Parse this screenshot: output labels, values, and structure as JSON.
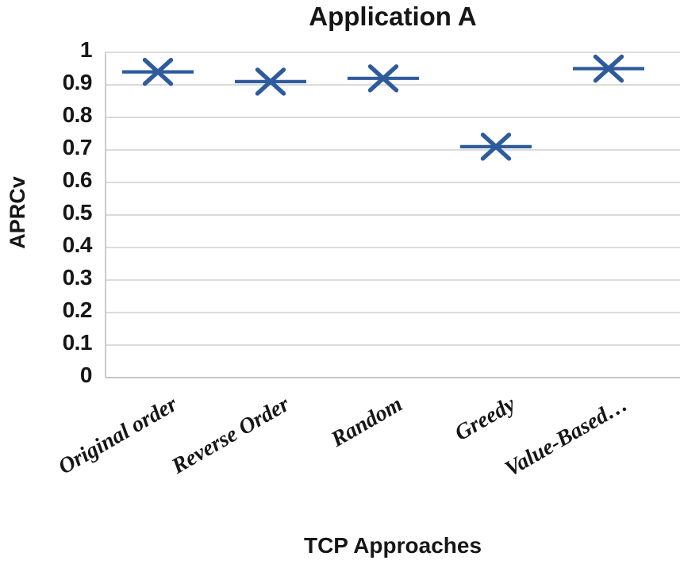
{
  "chart_data": {
    "type": "scatter",
    "title": "Application A",
    "xlabel": "TCP Approaches",
    "ylabel": "APRCv",
    "categories": [
      "Original order",
      "Reverse Order",
      "Random",
      "Greedy",
      "Value-Based…"
    ],
    "values": [
      0.94,
      0.91,
      0.92,
      0.71,
      0.95
    ],
    "ylim": [
      0,
      1
    ],
    "ytick_interval": 0.1,
    "ytick_labels": [
      "0",
      "0.1",
      "0.2",
      "0.3",
      "0.4",
      "0.5",
      "0.6",
      "0.7",
      "0.8",
      "0.9",
      "1"
    ],
    "grid": true,
    "legend": "none",
    "marker": {
      "shape": "x-with-horizontal-line",
      "color": "#2e5b9c"
    },
    "colors": {
      "gridline": "#d6d6d6",
      "axis_line": "#c2c2c2",
      "text": "#161616",
      "background": "#ffffff"
    }
  }
}
